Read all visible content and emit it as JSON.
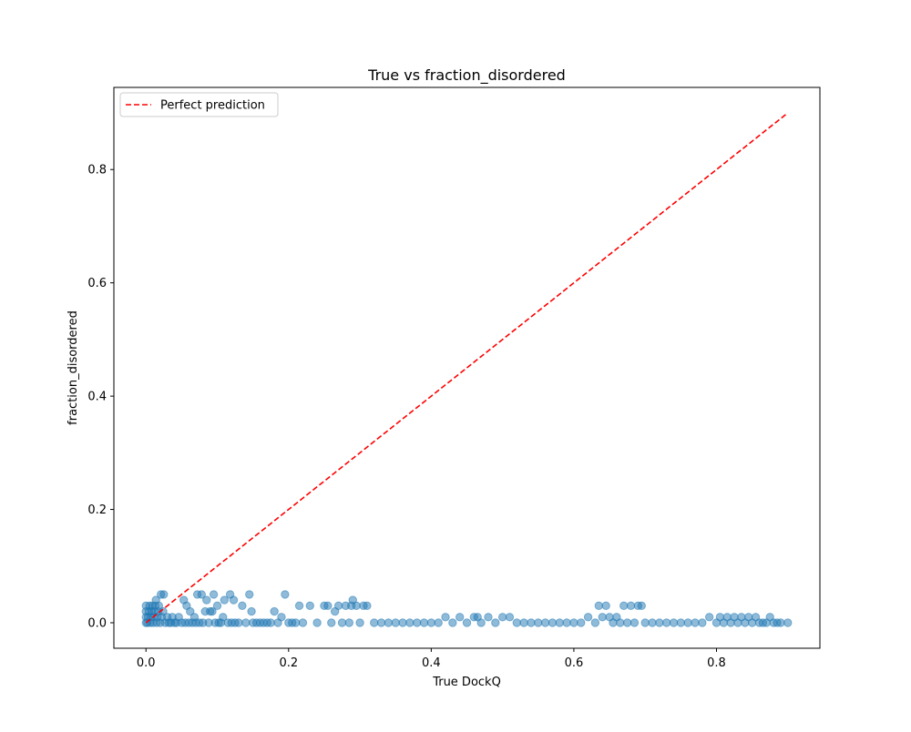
{
  "chart_data": {
    "type": "scatter",
    "title": "True vs fraction_disordered",
    "xlabel": "True DockQ",
    "ylabel": "fraction_disordered",
    "xlim": [
      -0.045,
      0.945
    ],
    "ylim": [
      -0.045,
      0.945
    ],
    "xticks": [
      0.0,
      0.2,
      0.4,
      0.6,
      0.8
    ],
    "yticks": [
      0.0,
      0.2,
      0.4,
      0.6,
      0.8
    ],
    "xtick_labels": [
      "0.0",
      "0.2",
      "0.4",
      "0.6",
      "0.8"
    ],
    "ytick_labels": [
      "0.0",
      "0.2",
      "0.4",
      "0.6",
      "0.8"
    ],
    "grid": false,
    "legend": {
      "position": "upper left",
      "entries": [
        {
          "label": "Perfect prediction",
          "style": "dashed",
          "color": "#ff0000"
        }
      ]
    },
    "reference_line": {
      "name": "Perfect prediction",
      "x": [
        0.0,
        0.9
      ],
      "y": [
        0.0,
        0.9
      ],
      "color": "#ff0000",
      "style": "dashed"
    },
    "series": [
      {
        "color": "#1f77b4",
        "opacity": 0.5,
        "points": [
          [
            0.0,
            0.0
          ],
          [
            0.0,
            0.01
          ],
          [
            0.0,
            0.02
          ],
          [
            0.0,
            0.03
          ],
          [
            0.002,
            0.0
          ],
          [
            0.003,
            0.01
          ],
          [
            0.004,
            0.02
          ],
          [
            0.005,
            0.03
          ],
          [
            0.006,
            0.0
          ],
          [
            0.007,
            0.01
          ],
          [
            0.008,
            0.02
          ],
          [
            0.009,
            0.03
          ],
          [
            0.01,
            0.0
          ],
          [
            0.011,
            0.01
          ],
          [
            0.012,
            0.02
          ],
          [
            0.013,
            0.03
          ],
          [
            0.014,
            0.04
          ],
          [
            0.015,
            0.0
          ],
          [
            0.016,
            0.01
          ],
          [
            0.017,
            0.02
          ],
          [
            0.018,
            0.03
          ],
          [
            0.02,
            0.0
          ],
          [
            0.021,
            0.05
          ],
          [
            0.022,
            0.01
          ],
          [
            0.024,
            0.02
          ],
          [
            0.025,
            0.05
          ],
          [
            0.027,
            0.0
          ],
          [
            0.03,
            0.01
          ],
          [
            0.032,
            0.0
          ],
          [
            0.035,
            0.0
          ],
          [
            0.037,
            0.01
          ],
          [
            0.04,
            0.0
          ],
          [
            0.043,
            0.0
          ],
          [
            0.046,
            0.01
          ],
          [
            0.05,
            0.0
          ],
          [
            0.053,
            0.04
          ],
          [
            0.055,
            0.0
          ],
          [
            0.057,
            0.03
          ],
          [
            0.06,
            0.0
          ],
          [
            0.062,
            0.02
          ],
          [
            0.065,
            0.0
          ],
          [
            0.068,
            0.01
          ],
          [
            0.07,
            0.0
          ],
          [
            0.072,
            0.05
          ],
          [
            0.075,
            0.0
          ],
          [
            0.078,
            0.05
          ],
          [
            0.08,
            0.0
          ],
          [
            0.083,
            0.02
          ],
          [
            0.085,
            0.04
          ],
          [
            0.088,
            0.0
          ],
          [
            0.09,
            0.02
          ],
          [
            0.093,
            0.02
          ],
          [
            0.095,
            0.05
          ],
          [
            0.097,
            0.0
          ],
          [
            0.1,
            0.03
          ],
          [
            0.102,
            0.0
          ],
          [
            0.105,
            0.0
          ],
          [
            0.108,
            0.01
          ],
          [
            0.11,
            0.04
          ],
          [
            0.115,
            0.0
          ],
          [
            0.118,
            0.05
          ],
          [
            0.12,
            0.0
          ],
          [
            0.123,
            0.04
          ],
          [
            0.125,
            0.0
          ],
          [
            0.13,
            0.0
          ],
          [
            0.135,
            0.03
          ],
          [
            0.14,
            0.0
          ],
          [
            0.145,
            0.05
          ],
          [
            0.148,
            0.02
          ],
          [
            0.15,
            0.0
          ],
          [
            0.155,
            0.0
          ],
          [
            0.16,
            0.0
          ],
          [
            0.165,
            0.0
          ],
          [
            0.17,
            0.0
          ],
          [
            0.175,
            0.0
          ],
          [
            0.18,
            0.02
          ],
          [
            0.185,
            0.0
          ],
          [
            0.19,
            0.01
          ],
          [
            0.195,
            0.05
          ],
          [
            0.2,
            0.0
          ],
          [
            0.205,
            0.0
          ],
          [
            0.21,
            0.0
          ],
          [
            0.215,
            0.03
          ],
          [
            0.22,
            0.0
          ],
          [
            0.23,
            0.03
          ],
          [
            0.24,
            0.0
          ],
          [
            0.25,
            0.03
          ],
          [
            0.255,
            0.03
          ],
          [
            0.26,
            0.0
          ],
          [
            0.265,
            0.02
          ],
          [
            0.27,
            0.03
          ],
          [
            0.275,
            0.0
          ],
          [
            0.28,
            0.03
          ],
          [
            0.285,
            0.0
          ],
          [
            0.288,
            0.03
          ],
          [
            0.29,
            0.04
          ],
          [
            0.295,
            0.03
          ],
          [
            0.3,
            0.0
          ],
          [
            0.305,
            0.03
          ],
          [
            0.31,
            0.03
          ],
          [
            0.32,
            0.0
          ],
          [
            0.33,
            0.0
          ],
          [
            0.34,
            0.0
          ],
          [
            0.35,
            0.0
          ],
          [
            0.36,
            0.0
          ],
          [
            0.37,
            0.0
          ],
          [
            0.38,
            0.0
          ],
          [
            0.39,
            0.0
          ],
          [
            0.4,
            0.0
          ],
          [
            0.41,
            0.0
          ],
          [
            0.42,
            0.01
          ],
          [
            0.43,
            0.0
          ],
          [
            0.44,
            0.01
          ],
          [
            0.45,
            0.0
          ],
          [
            0.46,
            0.01
          ],
          [
            0.465,
            0.01
          ],
          [
            0.47,
            0.0
          ],
          [
            0.48,
            0.01
          ],
          [
            0.49,
            0.0
          ],
          [
            0.5,
            0.01
          ],
          [
            0.51,
            0.01
          ],
          [
            0.52,
            0.0
          ],
          [
            0.53,
            0.0
          ],
          [
            0.54,
            0.0
          ],
          [
            0.55,
            0.0
          ],
          [
            0.56,
            0.0
          ],
          [
            0.57,
            0.0
          ],
          [
            0.58,
            0.0
          ],
          [
            0.59,
            0.0
          ],
          [
            0.6,
            0.0
          ],
          [
            0.61,
            0.0
          ],
          [
            0.62,
            0.01
          ],
          [
            0.63,
            0.0
          ],
          [
            0.635,
            0.03
          ],
          [
            0.64,
            0.01
          ],
          [
            0.645,
            0.03
          ],
          [
            0.65,
            0.01
          ],
          [
            0.655,
            0.0
          ],
          [
            0.66,
            0.01
          ],
          [
            0.665,
            0.0
          ],
          [
            0.67,
            0.03
          ],
          [
            0.675,
            0.0
          ],
          [
            0.68,
            0.03
          ],
          [
            0.685,
            0.0
          ],
          [
            0.69,
            0.03
          ],
          [
            0.695,
            0.03
          ],
          [
            0.7,
            0.0
          ],
          [
            0.71,
            0.0
          ],
          [
            0.72,
            0.0
          ],
          [
            0.73,
            0.0
          ],
          [
            0.74,
            0.0
          ],
          [
            0.75,
            0.0
          ],
          [
            0.76,
            0.0
          ],
          [
            0.77,
            0.0
          ],
          [
            0.78,
            0.0
          ],
          [
            0.79,
            0.01
          ],
          [
            0.8,
            0.0
          ],
          [
            0.805,
            0.01
          ],
          [
            0.81,
            0.0
          ],
          [
            0.815,
            0.01
          ],
          [
            0.82,
            0.0
          ],
          [
            0.825,
            0.01
          ],
          [
            0.83,
            0.0
          ],
          [
            0.835,
            0.01
          ],
          [
            0.84,
            0.0
          ],
          [
            0.845,
            0.01
          ],
          [
            0.85,
            0.0
          ],
          [
            0.855,
            0.01
          ],
          [
            0.86,
            0.0
          ],
          [
            0.865,
            0.0
          ],
          [
            0.87,
            0.0
          ],
          [
            0.875,
            0.01
          ],
          [
            0.88,
            0.0
          ],
          [
            0.885,
            0.0
          ],
          [
            0.89,
            0.0
          ],
          [
            0.9,
            0.0
          ]
        ]
      }
    ]
  }
}
